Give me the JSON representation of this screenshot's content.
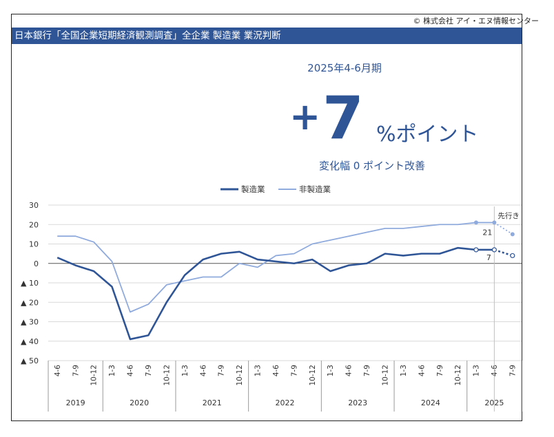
{
  "copyright": "© 株式会社 アイ・エヌ情報センター",
  "title": "日本銀行「全国企業短期経済観測調査」全企業 製造業 業況判断",
  "headline": {
    "period": "2025年4-6月期",
    "sign": "+",
    "value": "7",
    "unit": "%ポイント",
    "change": "変化幅 0 ポイント改善"
  },
  "colors": {
    "manufacturing": "#2f5597",
    "non_manufacturing": "#8faadc",
    "title_bg": "#2f5597"
  },
  "chart_data": {
    "type": "line",
    "ylim": [
      -50,
      30
    ],
    "y_ticks": [
      30,
      20,
      10,
      0,
      -10,
      -20,
      -30,
      -40,
      -50
    ],
    "y_tick_labels": [
      "30",
      "20",
      "10",
      "0",
      "▲ 10",
      "▲ 20",
      "▲ 30",
      "▲ 40",
      "▲ 50"
    ],
    "x_labels": [
      "4-6",
      "7-9",
      "10-12",
      "1-3",
      "4-6",
      "7-9",
      "10-12",
      "1-3",
      "4-6",
      "7-9",
      "10-12",
      "1-3",
      "4-6",
      "7-9",
      "10-12",
      "1-3",
      "4-6",
      "7-9",
      "10-12",
      "1-3",
      "4-6",
      "7-9",
      "10-12",
      "1-3",
      "4-6",
      "7-9"
    ],
    "years": [
      {
        "label": "2019",
        "count": 3
      },
      {
        "label": "2020",
        "count": 4
      },
      {
        "label": "2021",
        "count": 4
      },
      {
        "label": "2022",
        "count": 4
      },
      {
        "label": "2023",
        "count": 4
      },
      {
        "label": "2024",
        "count": 4
      },
      {
        "label": "2025",
        "count": 3
      }
    ],
    "series": [
      {
        "name": "製造業",
        "values": [
          3,
          -1,
          -4,
          -12,
          -39,
          -37,
          -20,
          -6,
          2,
          5,
          6,
          2,
          1,
          0,
          2,
          -4,
          -1,
          0,
          5,
          4,
          5,
          5,
          8,
          7,
          7
        ],
        "forecast": 4,
        "label": "7"
      },
      {
        "name": "非製造業",
        "values": [
          14,
          14,
          11,
          1,
          -25,
          -21,
          -11,
          -9,
          -7,
          -7,
          0,
          -2,
          4,
          5,
          10,
          12,
          14,
          16,
          18,
          18,
          19,
          20,
          20,
          21,
          21
        ],
        "forecast": 15,
        "label": "21"
      }
    ],
    "forecast_label": "先行き",
    "grid": true,
    "legend": "top-center"
  }
}
